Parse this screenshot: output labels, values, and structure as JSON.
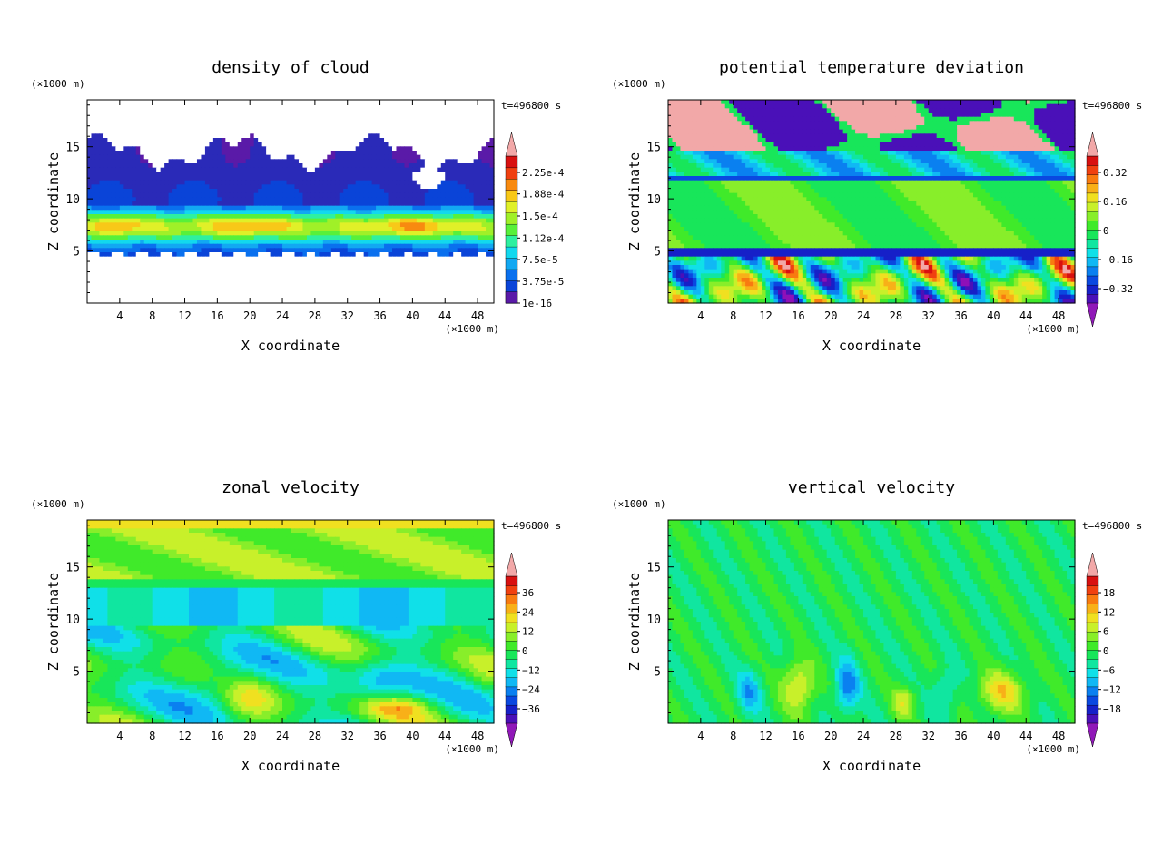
{
  "chart_data": [
    {
      "type": "heatmap",
      "title": "density of cloud",
      "xlabel": "X coordinate",
      "ylabel": "Z coordinate",
      "x_unit": "(×1000 m)",
      "z_unit": "(×1000 m)",
      "time_label": "t=496800 s",
      "xlim": [
        0,
        50
      ],
      "ylim": [
        0,
        19.5
      ],
      "x_ticks": [
        4,
        8,
        12,
        16,
        20,
        24,
        28,
        32,
        36,
        40,
        44,
        48
      ],
      "y_ticks": [
        5,
        10,
        15
      ],
      "colorbar": {
        "labels": [
          "2.25e-4",
          "1.88e-4",
          "1.5e-4",
          "1.12e-4",
          "7.5e-5",
          "3.75e-5",
          "1e-16"
        ],
        "label_values": [
          0.000225,
          0.000188,
          0.00015,
          0.000112,
          7.5e-05,
          3.75e-05,
          1e-16
        ]
      },
      "field": "cloud"
    },
    {
      "type": "heatmap",
      "title": "potential temperature deviation",
      "xlabel": "X coordinate",
      "ylabel": "Z coordinate",
      "x_unit": "(×1000 m)",
      "z_unit": "(×1000 m)",
      "time_label": "t=496800 s",
      "xlim": [
        0,
        50
      ],
      "ylim": [
        0,
        19.5
      ],
      "x_ticks": [
        4,
        8,
        12,
        16,
        20,
        24,
        28,
        32,
        36,
        40,
        44,
        48
      ],
      "y_ticks": [
        5,
        10,
        15
      ],
      "colorbar": {
        "labels": [
          "0.32",
          "0.16",
          "0",
          "−0.16",
          "−0.32"
        ],
        "label_values": [
          0.32,
          0.16,
          0,
          -0.16,
          -0.32
        ]
      },
      "field": "theta"
    },
    {
      "type": "heatmap",
      "title": "zonal velocity",
      "xlabel": "X coordinate",
      "ylabel": "Z coordinate",
      "x_unit": "(×1000 m)",
      "z_unit": "(×1000 m)",
      "time_label": "t=496800 s",
      "xlim": [
        0,
        50
      ],
      "ylim": [
        0,
        19.5
      ],
      "x_ticks": [
        4,
        8,
        12,
        16,
        20,
        24,
        28,
        32,
        36,
        40,
        44,
        48
      ],
      "y_ticks": [
        5,
        10,
        15
      ],
      "colorbar": {
        "labels": [
          "36",
          "24",
          "12",
          "0",
          "−12",
          "−24",
          "−36"
        ],
        "label_values": [
          36,
          24,
          12,
          0,
          -12,
          -24,
          -36
        ]
      },
      "field": "zonal"
    },
    {
      "type": "heatmap",
      "title": "vertical velocity",
      "xlabel": "X coordinate",
      "ylabel": "Z coordinate",
      "x_unit": "(×1000 m)",
      "z_unit": "(×1000 m)",
      "time_label": "t=496800 s",
      "xlim": [
        0,
        50
      ],
      "ylim": [
        0,
        19.5
      ],
      "x_ticks": [
        4,
        8,
        12,
        16,
        20,
        24,
        28,
        32,
        36,
        40,
        44,
        48
      ],
      "y_ticks": [
        5,
        10,
        15
      ],
      "colorbar": {
        "labels": [
          "18",
          "12",
          "6",
          "0",
          "−6",
          "−12",
          "−18"
        ],
        "label_values": [
          18,
          12,
          6,
          0,
          -6,
          -12,
          -18
        ]
      },
      "field": "vertical"
    }
  ],
  "colors": {
    "cloud_clear": "#ffffff",
    "cloud_scale": [
      "#5a1aa8",
      "#2a2ab8",
      "#0a44d8",
      "#0a70ee",
      "#12a8f2",
      "#12d8ee",
      "#2ef0a0",
      "#58f03a",
      "#a0f028",
      "#e0f028",
      "#f8c818",
      "#f88a10",
      "#f04010",
      "#d81010"
    ],
    "div_scale": [
      "#8f10b8",
      "#4a10b8",
      "#1620c8",
      "#0a48e0",
      "#0a80f0",
      "#10b8f4",
      "#10e0e8",
      "#10e6a0",
      "#18e65a",
      "#40ea2a",
      "#88ee2a",
      "#c8f02a",
      "#f0e020",
      "#f8b018",
      "#f87a10",
      "#f04010",
      "#d81010",
      "#f2a8a8"
    ],
    "triangle_top": "#f2a8a8",
    "triangle_bottom": "#9018b8"
  }
}
